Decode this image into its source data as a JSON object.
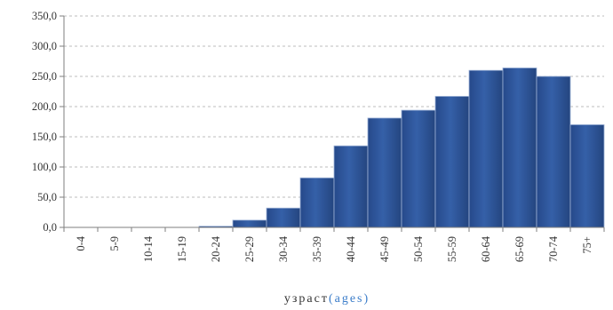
{
  "chart_data": {
    "type": "bar",
    "categories": [
      "0-4",
      "5-9",
      "10-14",
      "15-19",
      "20-24",
      "25-29",
      "30-34",
      "35-39",
      "40-44",
      "45-49",
      "50-54",
      "55-59",
      "60-64",
      "65-69",
      "70-74",
      "75+"
    ],
    "values": [
      0,
      0,
      0,
      0,
      2,
      12,
      32,
      82,
      135,
      181,
      194,
      217,
      260,
      264,
      250,
      170
    ],
    "ylim": [
      0,
      350
    ],
    "yticks": [
      "0,0",
      "50,0",
      "100,0",
      "150,0",
      "200,0",
      "250,0",
      "300,0",
      "350,0"
    ],
    "xlabel_main": "узраст",
    "xlabel_paren": "(ages)",
    "grid": true,
    "bar_color": "#2e5597",
    "bar_color_dark": "#1f3f78",
    "xlabel_paren_color": "#3a7cc9"
  }
}
